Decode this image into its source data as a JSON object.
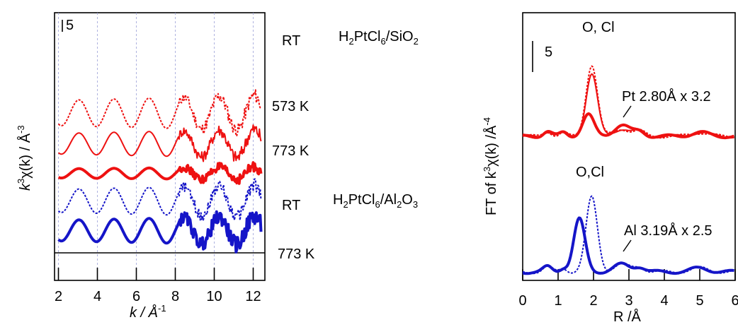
{
  "chart_data": [
    {
      "type": "line",
      "panel": "left",
      "xlabel": "k  /  Å",
      "xlabel_sup": "-1",
      "ylabel_main": "k",
      "ylabel_sup": "3",
      "ylabel_rest": "χ(k)  /  Å",
      "ylabel_sup2": "-3",
      "xlim": [
        1.8,
        12.6
      ],
      "xticks": [
        "2",
        "4",
        "6",
        "8",
        "10",
        "12"
      ],
      "scale_bar_label": "5",
      "grid": "vertical dotted at 2,4,6,8,10,12",
      "sample_labels": [
        {
          "key": "si",
          "text_parts": [
            "H",
            "2",
            "PtCl",
            "6",
            "/SiO",
            "2"
          ]
        },
        {
          "key": "al",
          "text_parts": [
            "H",
            "2",
            "PtCl",
            "6",
            "/Al",
            "2",
            "O",
            "3"
          ]
        }
      ],
      "series": [
        {
          "name": "RT",
          "sample": "H2PtCl6/SiO2",
          "color": "#ee1111",
          "style": "dotted",
          "width": 2,
          "offset": 4.0,
          "amp": 0.55,
          "noise": 0.25
        },
        {
          "name": "573 K",
          "sample": "H2PtCl6/SiO2",
          "color": "#ee1111",
          "style": "solid",
          "width": 2,
          "offset": 2.55,
          "amp": 0.45,
          "noise": 0.25
        },
        {
          "name": "773 K",
          "sample": "H2PtCl6/SiO2",
          "color": "#ee1111",
          "style": "solid",
          "width": 4,
          "offset": 1.15,
          "amp": 0.2,
          "noise": 0.18
        },
        {
          "name": "RT",
          "sample": "H2PtCl6/Al2O3",
          "color": "#1515c8",
          "style": "dotted",
          "width": 2,
          "offset": -0.15,
          "amp": 0.5,
          "noise": 0.25
        },
        {
          "name": "773 K",
          "sample": "H2PtCl6/Al2O3",
          "color": "#1515c8",
          "style": "solid",
          "width": 4,
          "offset": -1.55,
          "amp": 0.45,
          "noise": 0.3
        }
      ]
    },
    {
      "type": "line",
      "panel": "right",
      "xlabel": "R /Å",
      "ylabel_prefix": "FT of k",
      "ylabel_sup": "3",
      "ylabel_mid": "χ(k) /Å",
      "ylabel_sup2": "-4",
      "xlim": [
        0,
        6
      ],
      "xticks": [
        "0",
        "1",
        "2",
        "3",
        "4",
        "5",
        "6"
      ],
      "scale_bar_label": "5",
      "annotations": {
        "o_cl_top": "O, Cl",
        "pt": "Pt 2.80Å x 3.2",
        "o_cl_bottom": "O,Cl",
        "al": "Al 3.19Å x 2.5"
      },
      "series": [
        {
          "name": "RT",
          "sample": "H2PtCl6/SiO2",
          "color": "#ee1111",
          "style": "dotted",
          "width": 2,
          "peak_R": 1.95,
          "peak_height": 11.5
        },
        {
          "name": "573 K",
          "sample": "H2PtCl6/SiO2",
          "color": "#ee1111",
          "style": "solid",
          "width": 2,
          "peak_R": 1.95,
          "peak_height": 10.0
        },
        {
          "name": "773 K",
          "sample": "H2PtCl6/SiO2",
          "color": "#ee1111",
          "style": "solid",
          "width": 4,
          "peak_R": 1.85,
          "peak_height": 3.5
        },
        {
          "name": "RT",
          "sample": "H2PtCl6/Al2O3",
          "color": "#1515c8",
          "style": "dotted",
          "width": 2,
          "peak_R": 1.95,
          "peak_height": 12.0
        },
        {
          "name": "773 K",
          "sample": "H2PtCl6/Al2O3",
          "color": "#1515c8",
          "style": "solid",
          "width": 4,
          "peak_R": 1.6,
          "peak_height": 8.5
        }
      ]
    }
  ]
}
